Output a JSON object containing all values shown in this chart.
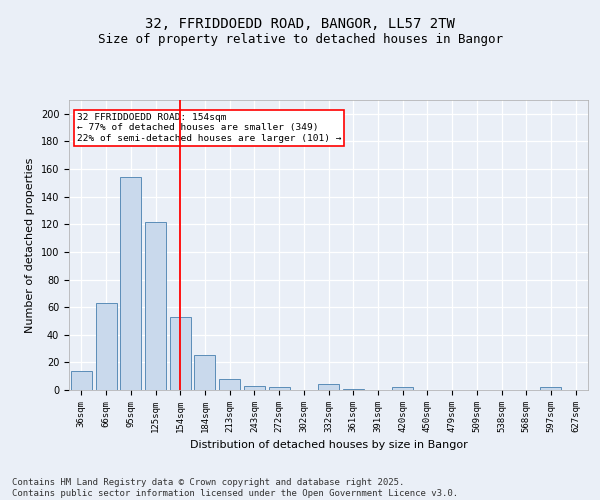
{
  "title1": "32, FFRIDDOEDD ROAD, BANGOR, LL57 2TW",
  "title2": "Size of property relative to detached houses in Bangor",
  "xlabel": "Distribution of detached houses by size in Bangor",
  "ylabel": "Number of detached properties",
  "categories": [
    "36sqm",
    "66sqm",
    "95sqm",
    "125sqm",
    "154sqm",
    "184sqm",
    "213sqm",
    "243sqm",
    "272sqm",
    "302sqm",
    "332sqm",
    "361sqm",
    "391sqm",
    "420sqm",
    "450sqm",
    "479sqm",
    "509sqm",
    "538sqm",
    "568sqm",
    "597sqm",
    "627sqm"
  ],
  "values": [
    14,
    63,
    154,
    122,
    53,
    25,
    8,
    3,
    2,
    0,
    4,
    1,
    0,
    2,
    0,
    0,
    0,
    0,
    0,
    2,
    0
  ],
  "bar_color": "#c9d9ec",
  "bar_edge_color": "#5b8db8",
  "vline_x_index": 4,
  "vline_color": "red",
  "annotation_text": "32 FFRIDDOEDD ROAD: 154sqm\n← 77% of detached houses are smaller (349)\n22% of semi-detached houses are larger (101) →",
  "annotation_box_color": "white",
  "annotation_box_edge": "red",
  "ylim": [
    0,
    210
  ],
  "yticks": [
    0,
    20,
    40,
    60,
    80,
    100,
    120,
    140,
    160,
    180,
    200
  ],
  "footer": "Contains HM Land Registry data © Crown copyright and database right 2025.\nContains public sector information licensed under the Open Government Licence v3.0.",
  "bg_color": "#eaeff7",
  "plot_bg_color": "#eaeff7",
  "grid_color": "white",
  "title_fontsize": 10,
  "subtitle_fontsize": 9,
  "tick_fontsize": 6.5,
  "ylabel_fontsize": 8,
  "xlabel_fontsize": 8,
  "footer_fontsize": 6.5
}
